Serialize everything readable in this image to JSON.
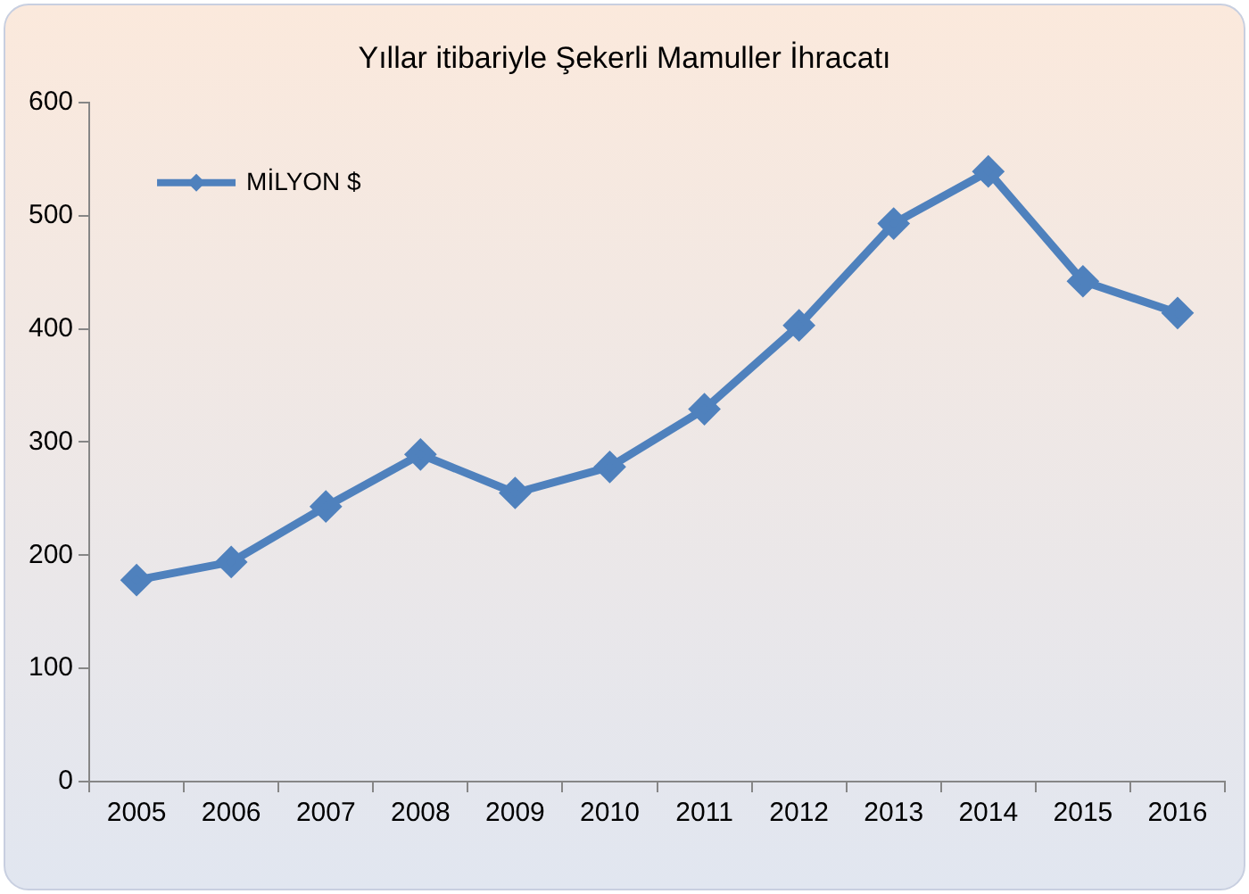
{
  "chart_data": {
    "type": "line",
    "title": "Yıllar itibariyle Şekerli Mamuller İhracatı",
    "categories": [
      "2005",
      "2006",
      "2007",
      "2008",
      "2009",
      "2010",
      "2011",
      "2012",
      "2013",
      "2014",
      "2015",
      "2016"
    ],
    "series": [
      {
        "name": "MİLYON $",
        "color": "#4f81bd",
        "values": [
          178,
          194,
          243,
          289,
          255,
          278,
          329,
          403,
          493,
          539,
          442,
          414
        ]
      }
    ],
    "ylim": [
      0,
      600
    ],
    "yticks": [
      0,
      100,
      200,
      300,
      400,
      500,
      600
    ],
    "grid": false,
    "legend": "top left",
    "marker": "diamond",
    "line_style": "solid"
  }
}
